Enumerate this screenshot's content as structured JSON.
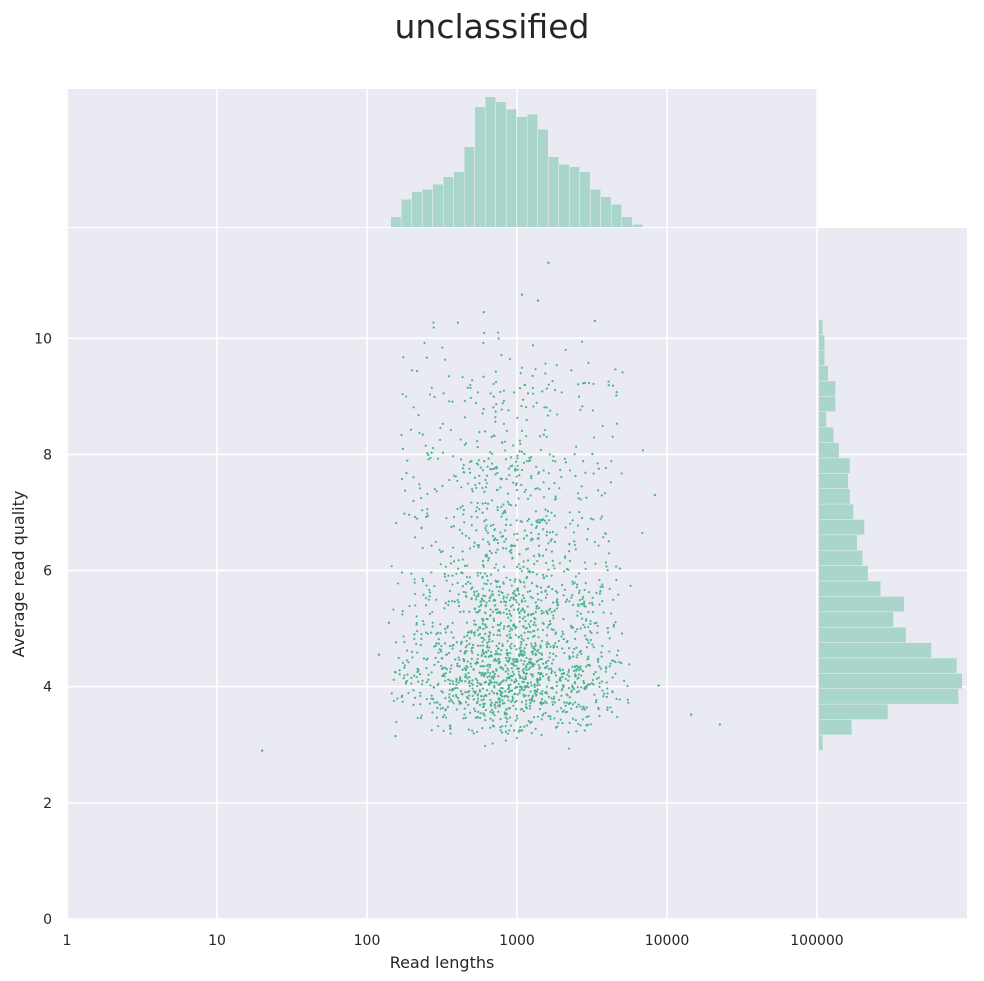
{
  "chart_data": {
    "type": "scatter",
    "title": "unclassified",
    "xlabel": "Read lengths",
    "ylabel": "Average read quality",
    "x_scale": "log",
    "x_ticks": [
      "1",
      "10",
      "100",
      "1000",
      "10000",
      "100000"
    ],
    "y_ticks": [
      "0",
      "2",
      "4",
      "6",
      "8",
      "10"
    ],
    "xlim": [
      1,
      1000000
    ],
    "ylim": [
      0,
      11.9
    ],
    "grid": true,
    "point_color": "#4cb391",
    "hist_color": "#a9d5ca",
    "background_color": "#eaeaf2",
    "marginal_x_histogram": {
      "axis": "log10 read length",
      "edges_start": 2.16,
      "bin_width": 0.07,
      "counts": [
        4,
        11,
        14,
        15,
        17,
        20,
        22,
        32,
        48,
        52,
        50,
        47,
        44,
        45,
        39,
        28,
        25,
        24,
        22,
        15,
        12,
        9,
        4,
        1
      ]
    },
    "marginal_y_histogram": {
      "axis": "average read quality",
      "edges_start": 2.9,
      "bin_width": 0.265,
      "counts": [
        2,
        18,
        38,
        77,
        79,
        76,
        62,
        48,
        41,
        47,
        34,
        27,
        24,
        21,
        25,
        19,
        17,
        16,
        17,
        11,
        8,
        4,
        9,
        9,
        5,
        3,
        3,
        2
      ]
    },
    "outliers": [
      {
        "x": 20,
        "y": 2.9
      },
      {
        "x": 14500,
        "y": 3.52
      },
      {
        "x": 22500,
        "y": 3.35
      },
      {
        "x": 1620,
        "y": 11.3
      },
      {
        "x": 1080,
        "y": 10.75
      },
      {
        "x": 1380,
        "y": 10.65
      },
      {
        "x": 3300,
        "y": 10.3
      },
      {
        "x": 600,
        "y": 10.45
      },
      {
        "x": 8800,
        "y": 4.02
      },
      {
        "x": 8300,
        "y": 7.3
      },
      {
        "x": 120,
        "y": 4.55
      },
      {
        "x": 140,
        "y": 5.1
      },
      {
        "x": 155,
        "y": 3.15
      }
    ]
  }
}
